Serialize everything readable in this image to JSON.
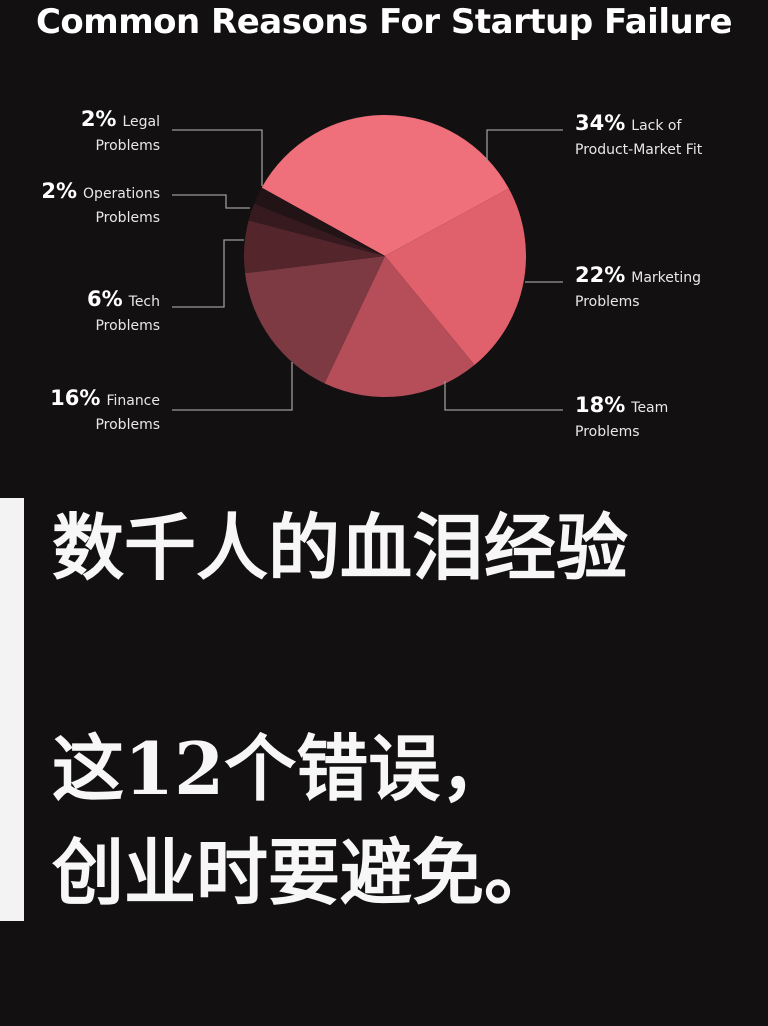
{
  "chart_data": {
    "type": "pie",
    "title": "Common Reasons For Startup Failure",
    "slices": [
      {
        "pct_label": "34%",
        "value": 34,
        "line1": "Lack of",
        "line2": "Product-Market Fit",
        "color": "#ef6f7a"
      },
      {
        "pct_label": "22%",
        "value": 22,
        "line1": "Marketing",
        "line2": "Problems",
        "color": "#e0606b"
      },
      {
        "pct_label": "18%",
        "value": 18,
        "line1": "Team",
        "line2": "Problems",
        "color": "#b54e59"
      },
      {
        "pct_label": "16%",
        "value": 16,
        "line1": "Finance",
        "line2": "Problems",
        "color": "#7e3a43"
      },
      {
        "pct_label": "6%",
        "value": 6,
        "line1": "Tech",
        "line2": "Problems",
        "color": "#55252c"
      },
      {
        "pct_label": "2%",
        "value": 2,
        "line1": "Operations",
        "line2": "Problems",
        "color": "#361a1f"
      },
      {
        "pct_label": "2%",
        "value": 2,
        "line1": "Legal",
        "line2": "Problems",
        "color": "#221316"
      }
    ]
  },
  "overlay": {
    "line1": "数千人的血泪经验",
    "line2": "这12个错误，",
    "line3": "创业时要避免。"
  },
  "colors": {
    "background": "#121011",
    "text": "#ffffff",
    "leader_line": "#9a9a9a",
    "accent_bar": "#f3f3f3"
  }
}
